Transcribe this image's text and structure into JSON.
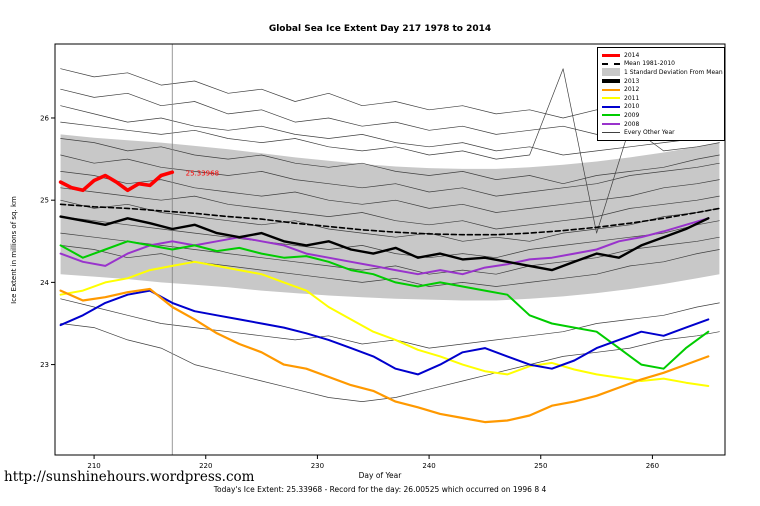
{
  "page": {
    "footer_url": "http://sunshinehours.wordpress.com",
    "footer_note": "Today's Ice Extent: 25.33968 - Record for the day: 26.00525 which occurred on 1996 8 4"
  },
  "chart_data": {
    "type": "line",
    "title": "Global Sea Ice Extent Day 217 1978 to 2014",
    "xlabel": "Day of Year",
    "ylabel": "Ice Extent in millions of sq. km",
    "xlim": [
      206.5,
      266.5
    ],
    "ylim": [
      21.9,
      26.9
    ],
    "x_ticks": [
      210,
      220,
      230,
      240,
      250,
      260
    ],
    "y_ticks": [
      23,
      24,
      25,
      26
    ],
    "grid": false,
    "legend_position": "top-right",
    "marker_day": 217,
    "annotation": {
      "text": "25.33968",
      "x": 218.2,
      "y": 25.3,
      "color": "#ff0000"
    },
    "x_main": [
      207,
      209,
      211,
      213,
      215,
      217,
      219,
      221,
      223,
      225,
      227,
      229,
      231,
      233,
      235,
      237,
      239,
      241,
      243,
      245,
      247,
      249,
      251,
      253,
      255,
      257,
      259,
      261,
      263,
      265
    ],
    "x_bg": [
      207,
      210,
      213,
      216,
      219,
      222,
      225,
      228,
      231,
      234,
      237,
      240,
      243,
      246,
      249,
      252,
      255,
      258,
      261,
      264,
      266
    ],
    "x_2014": [
      207,
      208,
      209,
      210,
      211,
      212,
      213,
      214,
      215,
      216,
      217
    ],
    "band": {
      "label": "1 Standard Deviation From Mean",
      "color": "#c8c8c8",
      "x_ref": "x_bg",
      "upper": [
        25.8,
        25.76,
        25.73,
        25.7,
        25.66,
        25.62,
        25.57,
        25.52,
        25.48,
        25.44,
        25.41,
        25.39,
        25.38,
        25.38,
        25.4,
        25.43,
        25.47,
        25.52,
        25.58,
        25.65,
        25.7
      ],
      "lower": [
        24.1,
        24.07,
        24.04,
        24.0,
        23.97,
        23.94,
        23.9,
        23.87,
        23.84,
        23.82,
        23.8,
        23.79,
        23.78,
        23.78,
        23.8,
        23.83,
        23.87,
        23.92,
        23.98,
        24.05,
        24.1
      ]
    },
    "series": [
      {
        "name": "Mean 1981-2010",
        "color": "#000000",
        "width": 1.6,
        "dash": "5,3",
        "x_ref": "x_bg",
        "y": [
          24.95,
          24.92,
          24.9,
          24.87,
          24.84,
          24.8,
          24.77,
          24.72,
          24.68,
          24.64,
          24.61,
          24.59,
          24.58,
          24.58,
          24.6,
          24.63,
          24.67,
          24.72,
          24.78,
          24.85,
          24.9
        ]
      },
      {
        "name": "2008",
        "color": "#9933cc",
        "width": 2,
        "x_ref": "x_main",
        "y": [
          24.35,
          24.25,
          24.2,
          24.35,
          24.45,
          24.5,
          24.45,
          24.5,
          24.55,
          24.5,
          24.45,
          24.35,
          24.3,
          24.25,
          24.2,
          24.15,
          24.1,
          24.15,
          24.1,
          24.18,
          24.22,
          24.28,
          24.3,
          24.35,
          24.4,
          24.5,
          24.55,
          24.62,
          24.7,
          24.78
        ]
      },
      {
        "name": "2009",
        "color": "#00cc00",
        "width": 2,
        "x_ref": "x_main",
        "y": [
          24.45,
          24.3,
          24.4,
          24.5,
          24.45,
          24.4,
          24.45,
          24.38,
          24.42,
          24.35,
          24.3,
          24.32,
          24.25,
          24.15,
          24.1,
          24.0,
          23.95,
          24.0,
          23.95,
          23.9,
          23.85,
          23.6,
          23.5,
          23.45,
          23.4,
          23.2,
          23.0,
          22.95,
          23.2,
          23.4
        ]
      },
      {
        "name": "2011",
        "color": "#ffff00",
        "width": 2,
        "x_ref": "x_main",
        "y": [
          23.85,
          23.9,
          24.0,
          24.05,
          24.15,
          24.2,
          24.25,
          24.2,
          24.15,
          24.1,
          24.0,
          23.9,
          23.7,
          23.55,
          23.4,
          23.3,
          23.18,
          23.1,
          23.0,
          22.92,
          22.88,
          22.98,
          23.02,
          22.94,
          22.88,
          22.84,
          22.8,
          22.83,
          22.78,
          22.74
        ]
      },
      {
        "name": "2010",
        "color": "#0000cd",
        "width": 2,
        "x_ref": "x_main",
        "y": [
          23.48,
          23.6,
          23.75,
          23.85,
          23.9,
          23.75,
          23.65,
          23.6,
          23.55,
          23.5,
          23.45,
          23.38,
          23.3,
          23.2,
          23.1,
          22.95,
          22.88,
          23.0,
          23.15,
          23.2,
          23.1,
          23.0,
          22.95,
          23.05,
          23.2,
          23.3,
          23.4,
          23.35,
          23.45,
          23.55
        ]
      },
      {
        "name": "2012",
        "color": "#ff9900",
        "width": 2.2,
        "x_ref": "x_main",
        "y": [
          23.9,
          23.78,
          23.82,
          23.88,
          23.92,
          23.7,
          23.55,
          23.38,
          23.25,
          23.15,
          23.0,
          22.95,
          22.85,
          22.75,
          22.68,
          22.55,
          22.48,
          22.4,
          22.35,
          22.3,
          22.32,
          22.38,
          22.5,
          22.55,
          22.62,
          22.72,
          22.82,
          22.9,
          23.0,
          23.1
        ]
      },
      {
        "name": "2013",
        "color": "#000000",
        "width": 2.4,
        "x_ref": "x_main",
        "y": [
          24.8,
          24.75,
          24.7,
          24.78,
          24.72,
          24.65,
          24.7,
          24.6,
          24.55,
          24.6,
          24.5,
          24.45,
          24.5,
          24.4,
          24.35,
          24.42,
          24.3,
          24.35,
          24.28,
          24.3,
          24.25,
          24.2,
          24.15,
          24.25,
          24.35,
          24.3,
          24.45,
          24.55,
          24.65,
          24.78
        ]
      },
      {
        "name": "2014",
        "color": "#ff0000",
        "width": 3.6,
        "x_ref": "x_2014",
        "y": [
          25.22,
          25.15,
          25.12,
          25.24,
          25.3,
          25.22,
          25.12,
          25.2,
          25.18,
          25.3,
          25.34
        ]
      }
    ],
    "other_years": {
      "label": "Every Other Year",
      "color": "#404040",
      "width": 0.7,
      "x_ref": "x_bg",
      "lines": [
        [
          26.6,
          26.5,
          26.55,
          26.4,
          26.45,
          26.3,
          26.35,
          26.2,
          26.3,
          26.15,
          26.2,
          26.1,
          26.15,
          26.05,
          26.1,
          26.0,
          26.1,
          26.05,
          26.15,
          26.1,
          26.2
        ],
        [
          26.35,
          26.25,
          26.3,
          26.15,
          26.2,
          26.05,
          26.1,
          25.95,
          26.0,
          25.9,
          25.95,
          25.85,
          25.9,
          25.8,
          25.85,
          25.9,
          25.8,
          25.9,
          25.95,
          26.0,
          26.05
        ],
        [
          26.15,
          26.05,
          25.95,
          26.0,
          25.9,
          25.85,
          25.9,
          25.8,
          25.75,
          25.8,
          25.7,
          25.65,
          25.7,
          25.6,
          25.65,
          25.55,
          25.6,
          25.65,
          25.7,
          25.75,
          25.8
        ],
        [
          25.95,
          25.9,
          25.85,
          25.8,
          25.85,
          25.75,
          25.7,
          25.75,
          25.65,
          25.6,
          25.65,
          25.55,
          25.6,
          25.5,
          25.55,
          26.6,
          24.6,
          25.9,
          25.6,
          25.65,
          25.7
        ],
        [
          25.75,
          25.7,
          25.6,
          25.65,
          25.55,
          25.5,
          25.55,
          25.45,
          25.4,
          25.45,
          25.35,
          25.3,
          25.35,
          25.25,
          25.3,
          25.2,
          25.3,
          25.35,
          25.4,
          25.5,
          25.55
        ],
        [
          25.55,
          25.45,
          25.5,
          25.4,
          25.35,
          25.3,
          25.35,
          25.25,
          25.2,
          25.15,
          25.2,
          25.1,
          25.15,
          25.05,
          25.1,
          25.15,
          25.2,
          25.3,
          25.35,
          25.4,
          25.45
        ],
        [
          25.35,
          25.3,
          25.2,
          25.25,
          25.15,
          25.1,
          25.05,
          25.1,
          25.0,
          24.95,
          25.0,
          24.9,
          24.95,
          24.85,
          24.9,
          24.95,
          25.0,
          25.05,
          25.15,
          25.2,
          25.25
        ],
        [
          25.15,
          25.1,
          25.05,
          25.0,
          25.05,
          24.95,
          24.9,
          24.85,
          24.8,
          24.85,
          24.75,
          24.7,
          24.75,
          24.65,
          24.7,
          24.75,
          24.8,
          24.9,
          24.95,
          25.0,
          25.05
        ],
        [
          25.0,
          24.9,
          24.95,
          24.85,
          24.8,
          24.75,
          24.7,
          24.75,
          24.65,
          24.6,
          24.55,
          24.6,
          24.5,
          24.55,
          24.5,
          24.6,
          24.65,
          24.7,
          24.8,
          24.85,
          24.9
        ],
        [
          24.8,
          24.75,
          24.7,
          24.65,
          24.6,
          24.55,
          24.5,
          24.45,
          24.4,
          24.45,
          24.35,
          24.3,
          24.35,
          24.3,
          24.4,
          24.45,
          24.5,
          24.55,
          24.6,
          24.7,
          24.75
        ],
        [
          24.6,
          24.55,
          24.5,
          24.45,
          24.4,
          24.35,
          24.3,
          24.25,
          24.2,
          24.15,
          24.2,
          24.1,
          24.15,
          24.1,
          24.2,
          24.25,
          24.3,
          24.4,
          24.45,
          24.5,
          24.55
        ],
        [
          24.45,
          24.4,
          24.3,
          24.35,
          24.25,
          24.2,
          24.15,
          24.1,
          24.05,
          24.0,
          24.05,
          23.95,
          24.0,
          23.95,
          24.0,
          24.05,
          24.1,
          24.2,
          24.25,
          24.35,
          24.4
        ],
        [
          23.8,
          23.7,
          23.6,
          23.5,
          23.45,
          23.4,
          23.35,
          23.3,
          23.35,
          23.25,
          23.3,
          23.2,
          23.25,
          23.3,
          23.35,
          23.4,
          23.5,
          23.55,
          23.6,
          23.7,
          23.75
        ],
        [
          23.5,
          23.45,
          23.3,
          23.2,
          23.0,
          22.9,
          22.8,
          22.7,
          22.6,
          22.55,
          22.6,
          22.7,
          22.8,
          22.9,
          23.0,
          23.1,
          23.15,
          23.2,
          23.3,
          23.35,
          23.4
        ]
      ]
    },
    "legend": [
      {
        "label": "2014",
        "color": "#ff0000",
        "style": "thick"
      },
      {
        "label": "Mean 1981-2010",
        "color": "#000000",
        "style": "dashed"
      },
      {
        "label": "1 Standard Deviation From Mean",
        "color": "#c8c8c8",
        "style": "box"
      },
      {
        "label": "2013",
        "color": "#000000",
        "style": "thick"
      },
      {
        "label": "2012",
        "color": "#ff9900",
        "style": "line"
      },
      {
        "label": "2011",
        "color": "#ffff00",
        "style": "line"
      },
      {
        "label": "2010",
        "color": "#0000cd",
        "style": "line"
      },
      {
        "label": "2009",
        "color": "#00cc00",
        "style": "line"
      },
      {
        "label": "2008",
        "color": "#9933cc",
        "style": "line"
      },
      {
        "label": "Every Other Year",
        "color": "#404040",
        "style": "thin"
      }
    ]
  }
}
